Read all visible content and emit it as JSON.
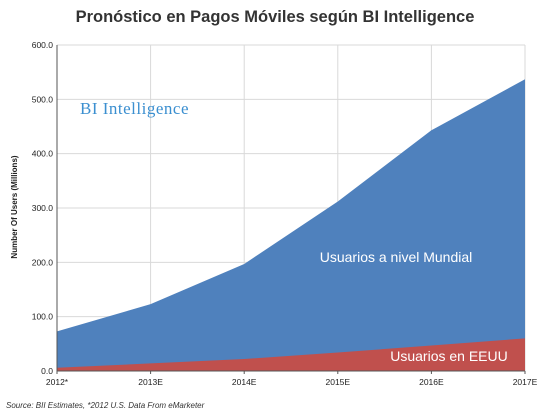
{
  "chart_data": {
    "type": "area",
    "title": "Pronóstico en Pagos Móviles según BI Intelligence",
    "ylabel": "Number Of Users (Millions)",
    "xlabel": "",
    "categories": [
      "2012*",
      "2013E",
      "2014E",
      "2015E",
      "2016E",
      "2017E"
    ],
    "ylim": [
      0,
      600
    ],
    "yticks": [
      "0.0",
      "100.0",
      "200.0",
      "300.0",
      "400.0",
      "500.0",
      "600.0"
    ],
    "grid": true,
    "stacked": false,
    "series": [
      {
        "name": "Usuarios a nivel Mundial",
        "values": [
          73,
          123,
          197,
          312,
          443,
          537
        ],
        "color": "#4f81bd"
      },
      {
        "name": "Usuarios en EEUU",
        "values": [
          6,
          14,
          22,
          34,
          47,
          60
        ],
        "color": "#c0504d"
      }
    ],
    "brand": "BI Intelligence",
    "source": "Source: BII Estimates, *2012 U.S. Data From eMarketer"
  }
}
